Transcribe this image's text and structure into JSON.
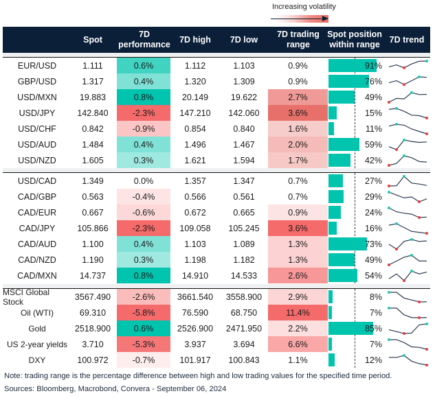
{
  "legend": {
    "text": "Increasing volatility"
  },
  "headers": {
    "pair": "",
    "spot": "Spot",
    "perf": "7D performance",
    "high": "7D high",
    "low": "7D low",
    "range": "7D trading range",
    "position": "Spot position within range",
    "trend": "7D trend"
  },
  "colors": {
    "teal": "#00c4ae",
    "red": "#f56a6a",
    "range_red": "#e8706a",
    "navy": "#0b1f38",
    "marker_max": "#1ec8b4",
    "marker_min": "#e83a3a"
  },
  "groups": [
    {
      "rows": [
        {
          "pair": "EUR/USD",
          "spot": "1.111",
          "perf": "0.6%",
          "high": "1.112",
          "low": "1.103",
          "range": "0.9%",
          "position": "91%",
          "trend": [
            0.4,
            0.6,
            0.3,
            0.7,
            0.98,
            1
          ]
        },
        {
          "pair": "GBP/USD",
          "spot": "1.317",
          "perf": "0.4%",
          "high": "1.320",
          "low": "1.309",
          "range": "0.9%",
          "position": "76%",
          "trend": [
            0.4,
            0.6,
            0.2,
            0.6,
            1,
            0.95
          ]
        },
        {
          "pair": "USD/MXN",
          "spot": "19.883",
          "perf": "0.8%",
          "high": "20.149",
          "low": "19.622",
          "range": "2.7%",
          "position": "49%",
          "trend": [
            0,
            0.4,
            0.35,
            1,
            0.8,
            0.82
          ]
        },
        {
          "pair": "USD/JPY",
          "spot": "142.840",
          "perf": "-2.3%",
          "high": "147.210",
          "low": "142.060",
          "range": "3.6%",
          "position": "15%",
          "trend": [
            0.9,
            1,
            0.7,
            0.3,
            0.25,
            0
          ]
        },
        {
          "pair": "USD/CHF",
          "spot": "0.842",
          "perf": "-0.9%",
          "high": "0.854",
          "low": "0.840",
          "range": "1.6%",
          "position": "11%",
          "trend": [
            0.8,
            1,
            0.9,
            0.5,
            0.25,
            0
          ]
        },
        {
          "pair": "USD/AUD",
          "spot": "1.484",
          "perf": "0.4%",
          "high": "1.496",
          "low": "1.467",
          "range": "2.0%",
          "position": "59%",
          "trend": [
            0.3,
            0,
            1,
            0.85,
            0.75,
            0.8
          ]
        },
        {
          "pair": "USD/NZD",
          "spot": "1.605",
          "perf": "0.3%",
          "high": "1.621",
          "low": "1.594",
          "range": "1.7%",
          "position": "42%",
          "trend": [
            0,
            0.2,
            1,
            0.8,
            0.4,
            0.35
          ]
        }
      ]
    },
    {
      "rows": [
        {
          "pair": "USD/CAD",
          "spot": "1.349",
          "perf": "0.0%",
          "high": "1.357",
          "low": "1.347",
          "range": "0.7%",
          "position": "27%",
          "trend": [
            0,
            0.02,
            1,
            0.3,
            0.2,
            0.05
          ]
        },
        {
          "pair": "CAD/GBP",
          "spot": "0.563",
          "perf": "-0.4%",
          "high": "0.566",
          "low": "0.561",
          "range": "0.7%",
          "position": "29%",
          "trend": [
            1,
            0.7,
            0.4,
            0.5,
            0,
            0.3
          ]
        },
        {
          "pair": "CAD/EUR",
          "spot": "0.667",
          "perf": "-0.6%",
          "high": "0.672",
          "low": "0.665",
          "range": "0.9%",
          "position": "24%",
          "trend": [
            1,
            0.6,
            0.45,
            0.35,
            0,
            0.05
          ]
        },
        {
          "pair": "CAD/JPY",
          "spot": "105.866",
          "perf": "-2.3%",
          "high": "109.058",
          "low": "105.245",
          "range": "3.6%",
          "position": "16%",
          "trend": [
            0.85,
            1,
            0.6,
            0.2,
            0.1,
            0
          ]
        },
        {
          "pair": "CAD/AUD",
          "spot": "1.100",
          "perf": "0.4%",
          "high": "1.103",
          "low": "1.089",
          "range": "1.3%",
          "position": "73%",
          "trend": [
            0.5,
            0,
            0.8,
            1,
            0.8,
            0.85
          ]
        },
        {
          "pair": "CAD/NZD",
          "spot": "1.190",
          "perf": "0.3%",
          "high": "1.198",
          "low": "1.182",
          "range": "1.3%",
          "position": "49%",
          "trend": [
            0,
            0.4,
            0.8,
            1,
            0.4,
            0.4
          ]
        },
        {
          "pair": "CAD/MXN",
          "spot": "14.737",
          "perf": "0.8%",
          "high": "14.910",
          "low": "14.533",
          "range": "2.6%",
          "position": "54%",
          "trend": [
            0.2,
            0.7,
            0,
            1,
            0.7,
            0.9
          ]
        }
      ]
    },
    {
      "rows": [
        {
          "pair": "MSCI Global Stock",
          "spot": "3567.490",
          "perf": "-2.6%",
          "high": "3661.540",
          "low": "3558.900",
          "range": "2.9%",
          "position": "8%",
          "trend": [
            1,
            1,
            0.4,
            0.2,
            0,
            0.02
          ]
        },
        {
          "pair": "Oil (WTI)",
          "spot": "69.310",
          "perf": "-5.8%",
          "high": "76.590",
          "low": "68.750",
          "range": "11.4%",
          "position": "7%",
          "trend": [
            1,
            1,
            0.3,
            0.02,
            0,
            0.02
          ]
        },
        {
          "pair": "Gold",
          "spot": "2518.900",
          "perf": "0.6%",
          "high": "2526.900",
          "low": "2471.950",
          "range": "2.2%",
          "position": "85%",
          "trend": [
            0.4,
            0.2,
            0,
            0.05,
            0.9,
            1
          ]
        },
        {
          "pair": "US 2-year yields",
          "spot": "3.710",
          "perf": "-5.3%",
          "high": "3.937",
          "low": "3.694",
          "range": "6.6%",
          "position": "7%",
          "trend": [
            1,
            1,
            0.7,
            0.25,
            0.2,
            0
          ]
        },
        {
          "pair": "DXY",
          "spot": "100.972",
          "perf": "-0.7%",
          "high": "101.917",
          "low": "100.843",
          "range": "1.1%",
          "position": "12%",
          "trend": [
            0.8,
            0.8,
            1,
            0.4,
            0.15,
            0
          ]
        }
      ]
    }
  ],
  "footer": {
    "note": "Note: trading range is the percentage difference between high and low trading values for the specified time period.",
    "sources": "Sources: Bloomberg, Macrobond, Convera - September 06, 2024"
  },
  "chart_data": {
    "type": "table",
    "columns": [
      "",
      "Spot",
      "7D performance",
      "7D high",
      "7D low",
      "7D trading range",
      "Spot position within range",
      "7D trend"
    ]
  }
}
